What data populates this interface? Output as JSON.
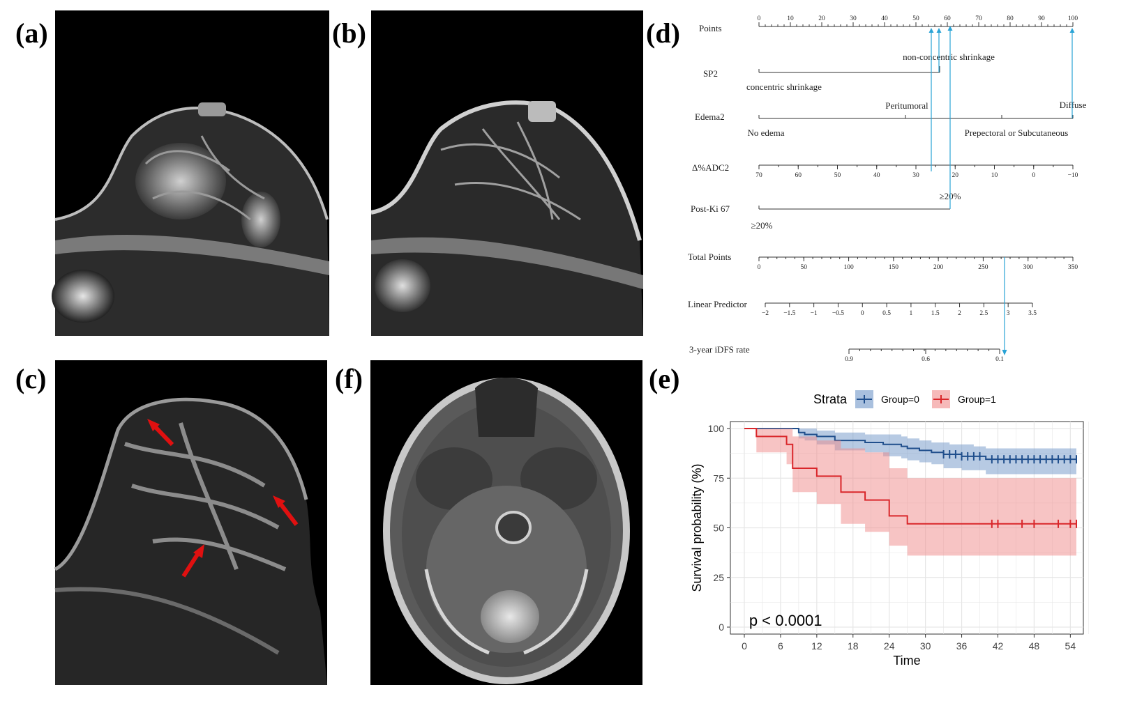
{
  "figure": {
    "labels": {
      "a": "(a)",
      "b": "(b)",
      "c": "(c)",
      "d": "(d)",
      "e": "(e)",
      "f": "(f)"
    },
    "panels": {
      "a": "breast-mri-pre-treatment",
      "b": "breast-mri-post-treatment",
      "c": "breast-mri-peritumoral-edema-arrows",
      "f": "brain-mri-axial-metastasis"
    }
  },
  "nomogram": {
    "rows": {
      "points": "Points",
      "sp2": "SP2",
      "edema2": "Edema2",
      "adc2": "Δ%ADC2",
      "ki67": "Post-Ki 67",
      "total": "Total Points",
      "lp": "Linear Predictor",
      "idfs": "3-year iDFS rate"
    },
    "points_ticks": [
      "0",
      "10",
      "20",
      "30",
      "40",
      "50",
      "60",
      "70",
      "80",
      "90",
      "100"
    ],
    "sp2_labels": {
      "high": "non-concentric shrinkage",
      "low": "concentric shrinkage"
    },
    "edema_labels": {
      "peri": "Peritumoral",
      "diffuse": "Diffuse",
      "none": "No edema",
      "prepec": "Prepectoral or Subcutaneous"
    },
    "adc_ticks": [
      "70",
      "60",
      "50",
      "40",
      "30",
      "20",
      "10",
      "0",
      "−10"
    ],
    "ki67_labels": {
      "high": "≥20%",
      "low": "≥20%"
    },
    "total_ticks": [
      "0",
      "50",
      "100",
      "150",
      "200",
      "250",
      "300",
      "350"
    ],
    "lp_ticks": [
      "−2",
      "−1.5",
      "−1",
      "−0.5",
      "0",
      "0.5",
      "1",
      "1.5",
      "2",
      "2.5",
      "3",
      "3.5"
    ],
    "idfs_ticks": [
      "0.9",
      "0.6",
      "0.1"
    ],
    "colors": {
      "arrow": "#29a3d6",
      "axis": "#333333"
    }
  },
  "chart_data": {
    "type": "line",
    "title": "",
    "xlabel": "Time",
    "ylabel": "Survival probability (%)",
    "xlim": [
      0,
      55
    ],
    "ylim": [
      0,
      100
    ],
    "xticks": [
      0,
      6,
      12,
      18,
      24,
      30,
      36,
      42,
      48,
      54
    ],
    "yticks": [
      0,
      25,
      50,
      75,
      100
    ],
    "legend_title": "Strata",
    "annotation": "p < 0.0001",
    "series": [
      {
        "name": "Group=0",
        "color": "#1f4e8c",
        "band_color": "#6f96c8",
        "x": [
          0,
          9,
          10,
          12,
          15,
          20,
          23,
          26,
          27,
          29,
          31,
          33,
          34,
          36,
          38,
          40,
          55
        ],
        "y": [
          100,
          98,
          97,
          96,
          94,
          93,
          92,
          91,
          90,
          89,
          88,
          87,
          87,
          86,
          86,
          84.5,
          84.5
        ],
        "lower": [
          100,
          95,
          94,
          92,
          89,
          88,
          86,
          85,
          84,
          83,
          82,
          80,
          80,
          79,
          79,
          77,
          77
        ],
        "upper": [
          100,
          100,
          100,
          99,
          98,
          97,
          97,
          96,
          95,
          94,
          93,
          93,
          92,
          92,
          91,
          90,
          90
        ],
        "censor_x": [
          33,
          34,
          35,
          36,
          37,
          38,
          39,
          41,
          42,
          43,
          44,
          45,
          46,
          47,
          48,
          49,
          50,
          51,
          52,
          53,
          54,
          55
        ]
      },
      {
        "name": "Group=1",
        "color": "#d9262a",
        "band_color": "#f08a8a",
        "x": [
          0,
          2,
          7,
          8,
          12,
          16,
          20,
          24,
          27,
          55
        ],
        "y": [
          100,
          96,
          92,
          80,
          76,
          68,
          64,
          56,
          52,
          52
        ],
        "lower": [
          100,
          88,
          82,
          68,
          62,
          52,
          48,
          41,
          36,
          36
        ],
        "upper": [
          100,
          100,
          100,
          96,
          94,
          90,
          88,
          80,
          75,
          75
        ],
        "censor_x": [
          41,
          42,
          46,
          48,
          52,
          54,
          55
        ]
      }
    ]
  }
}
